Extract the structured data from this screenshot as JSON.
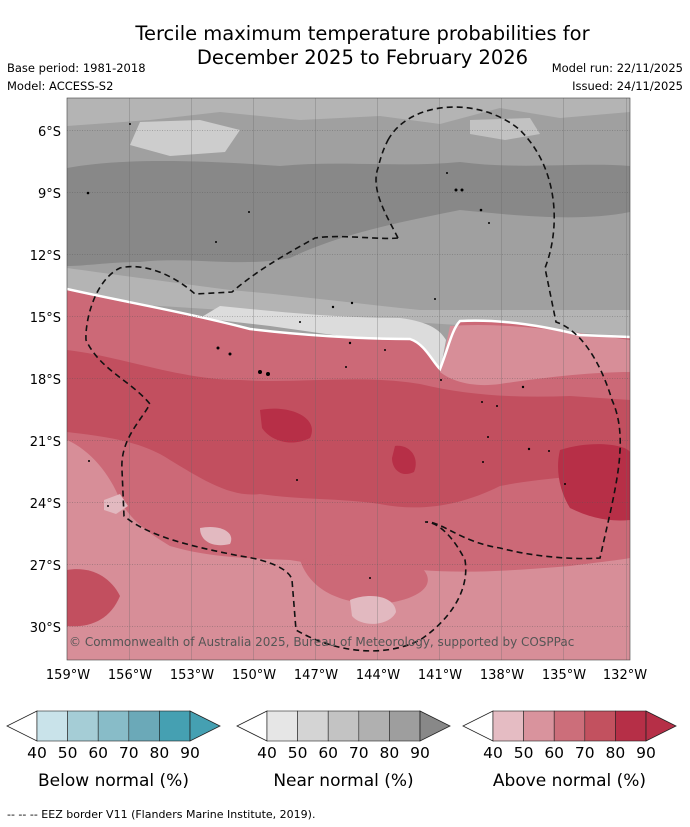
{
  "title_line1": "Tercile maximum temperature probabilities for",
  "title_line2": "December 2025 to February 2026",
  "meta_left": [
    "Base period: 1981-2018",
    "Model: ACCESS-S2"
  ],
  "meta_right": [
    "Model run: 22/11/2025",
    "Issued: 24/11/2025"
  ],
  "lat_labels": [
    "6°S",
    "9°S",
    "12°S",
    "15°S",
    "18°S",
    "21°S",
    "24°S",
    "27°S",
    "30°S"
  ],
  "lon_labels": [
    "159°W",
    "156°W",
    "153°W",
    "150°W",
    "147°W",
    "144°W",
    "141°W",
    "138°W",
    "135°W",
    "132°W"
  ],
  "copyright": "© Commonwealth of Australia 2025, Bureau of Meteorology, supported by COSPPac",
  "legends": [
    {
      "title": "Below normal (%)",
      "ticks": [
        "40",
        "50",
        "60",
        "70",
        "80",
        "90"
      ],
      "colors": [
        "#c9e3ea",
        "#a5cdd6",
        "#88bcc8",
        "#6ba9b8",
        "#45a0b2"
      ]
    },
    {
      "title": "Near normal (%)",
      "ticks": [
        "40",
        "50",
        "60",
        "70",
        "80",
        "90"
      ],
      "colors": [
        "#e6e6e6",
        "#d4d4d4",
        "#c3c3c3",
        "#b0b0b0",
        "#9e9e9e",
        "#888888"
      ]
    },
    {
      "title": "Above normal (%)",
      "ticks": [
        "40",
        "50",
        "60",
        "70",
        "80",
        "90"
      ],
      "colors": [
        "#e5bcc3",
        "#d9939d",
        "#cc6e7a",
        "#c2515f",
        "#b62f47"
      ]
    }
  ],
  "footer": "--  --  -- EEZ border V11 (Flanders Marine Institute, 2019).",
  "colors": {
    "near_40": "#e0e0e0",
    "near_50": "#cdcdcd",
    "near_60": "#b4b4b4",
    "near_70": "#a0a0a0",
    "near_80": "#888888",
    "above_40": "#e2b9c0",
    "above_50": "#d78e98",
    "above_60": "#cc6977",
    "above_70": "#c24f5f",
    "above_80": "#b72f47"
  }
}
